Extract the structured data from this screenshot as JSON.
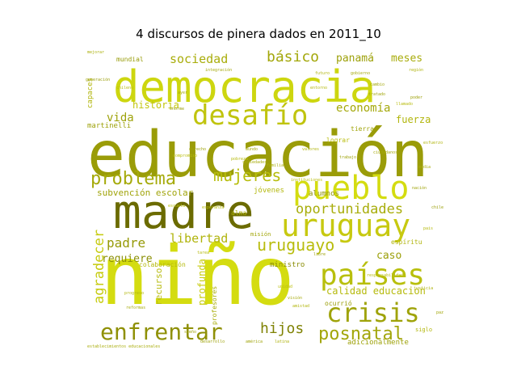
{
  "title": "4 discursos de pinera dados en 2011_10",
  "chart_data": {
    "type": "wordcloud",
    "title": "4 discursos de pinera dados en 2011_10",
    "words": [
      {
        "text": "niño",
        "weight": 100,
        "color": "#d4dc10",
        "dir": "h"
      },
      {
        "text": "educación",
        "weight": 88,
        "color": "#9a9c08",
        "dir": "h"
      },
      {
        "text": "madre",
        "weight": 80,
        "color": "#6b6b00",
        "dir": "h"
      },
      {
        "text": "democracia",
        "weight": 72,
        "color": "#cdd60f",
        "dir": "h"
      },
      {
        "text": "pueblo",
        "weight": 58,
        "color": "#d4dc10",
        "dir": "h"
      },
      {
        "text": "uruguay",
        "weight": 52,
        "color": "#c7c910",
        "dir": "h"
      },
      {
        "text": "países",
        "weight": 50,
        "color": "#b8bf0d",
        "dir": "h"
      },
      {
        "text": "desafío",
        "weight": 48,
        "color": "#c0c40e",
        "dir": "h"
      },
      {
        "text": "crisis",
        "weight": 44,
        "color": "#9fa30a",
        "dir": "h"
      },
      {
        "text": "enfrentar",
        "weight": 40,
        "color": "#8f9006",
        "dir": "h"
      },
      {
        "text": "problema",
        "weight": 34,
        "color": "#a5aa0a",
        "dir": "h"
      },
      {
        "text": "mujeres",
        "weight": 28,
        "color": "#b7bd0c",
        "dir": "h"
      },
      {
        "text": "posnatal",
        "weight": 28,
        "color": "#a2a60a",
        "dir": "h"
      },
      {
        "text": "uruguayo",
        "weight": 28,
        "color": "#b8bc0d",
        "dir": "h"
      },
      {
        "text": "oportunidades",
        "weight": 24,
        "color": "#a8ad0b",
        "dir": "h"
      },
      {
        "text": "hijos",
        "weight": 24,
        "color": "#7f8204",
        "dir": "h"
      },
      {
        "text": "básico",
        "weight": 24,
        "color": "#a3a70a",
        "dir": "h"
      },
      {
        "text": "agradecer",
        "weight": 24,
        "color": "#c6cb0f",
        "dir": "v"
      },
      {
        "text": "sociedad",
        "weight": 20,
        "color": "#a9ad0b",
        "dir": "h"
      },
      {
        "text": "padre",
        "weight": 20,
        "color": "#969a08",
        "dir": "h"
      },
      {
        "text": "libertad",
        "weight": 20,
        "color": "#b0b40c",
        "dir": "h"
      },
      {
        "text": "vida",
        "weight": 20,
        "color": "#9ea20a",
        "dir": "h"
      },
      {
        "text": "economía",
        "weight": 18,
        "color": "#a4a80a",
        "dir": "h"
      },
      {
        "text": "requiere",
        "weight": 16,
        "color": "#8c9007",
        "dir": "h"
      },
      {
        "text": "panamá",
        "weight": 16,
        "color": "#9da10a",
        "dir": "h"
      },
      {
        "text": "meses",
        "weight": 16,
        "color": "#a8ac0b",
        "dir": "h"
      },
      {
        "text": "caso",
        "weight": 16,
        "color": "#9b9f09",
        "dir": "h"
      },
      {
        "text": "calidad educacion",
        "weight": 14,
        "color": "#b6ba0d",
        "dir": "h"
      },
      {
        "text": "historia",
        "weight": 14,
        "color": "#c2c60e",
        "dir": "h"
      },
      {
        "text": "fuerza",
        "weight": 14,
        "color": "#b1b50c",
        "dir": "h"
      },
      {
        "text": "subvención escolar",
        "weight": 13,
        "color": "#a0a40a",
        "dir": "h"
      },
      {
        "text": "profunda",
        "weight": 14,
        "color": "#c7cc0f",
        "dir": "v"
      },
      {
        "text": "recurso",
        "weight": 13,
        "color": "#b7bb0d",
        "dir": "v"
      },
      {
        "text": "alumnos",
        "weight": 11,
        "color": "#8e9207",
        "dir": "h"
      },
      {
        "text": "jóvenes",
        "weight": 11,
        "color": "#b3b70c",
        "dir": "h"
      },
      {
        "text": "ministro",
        "weight": 11,
        "color": "#8a8d06",
        "dir": "h"
      },
      {
        "text": "adicionalmente",
        "weight": 11,
        "color": "#9ea20a",
        "dir": "h"
      },
      {
        "text": "capaces",
        "weight": 11,
        "color": "#b1b50c",
        "dir": "v"
      },
      {
        "text": "martinelli",
        "weight": 10,
        "color": "#9da10a",
        "dir": "h"
      },
      {
        "text": "mundial",
        "weight": 10,
        "color": "#989c09",
        "dir": "h"
      },
      {
        "text": "colaboración",
        "weight": 10,
        "color": "#b5b90d",
        "dir": "h"
      },
      {
        "text": "alma",
        "weight": 10,
        "color": "#a9ad0b",
        "dir": "h"
      },
      {
        "text": "misión",
        "weight": 9,
        "color": "#a2a60a",
        "dir": "h"
      },
      {
        "text": "espíritu",
        "weight": 9,
        "color": "#b0b40c",
        "dir": "h"
      },
      {
        "text": "tierra",
        "weight": 9,
        "color": "#a0a40a",
        "dir": "h"
      },
      {
        "text": "lograr",
        "weight": 9,
        "color": "#b9bd0d",
        "dir": "h"
      },
      {
        "text": "profesores",
        "weight": 9,
        "color": "#a9ad0b",
        "dir": "v"
      },
      {
        "text": "ocurrió",
        "weight": 9,
        "color": "#9a9e09",
        "dir": "h"
      },
      {
        "text": "siglo",
        "weight": 9,
        "color": "#b3b70c",
        "dir": "h"
      },
      {
        "text": "generación",
        "weight": 7,
        "color": "#9a9e09",
        "dir": "h"
      },
      {
        "text": "chileno",
        "weight": 7,
        "color": "#b9bd0d",
        "dir": "h"
      },
      {
        "text": "ayer",
        "weight": 7,
        "color": "#a5a90b",
        "dir": "h"
      },
      {
        "text": "futuro",
        "weight": 7,
        "color": "#b0b40c",
        "dir": "h"
      },
      {
        "text": "poder",
        "weight": 7,
        "color": "#9da10a",
        "dir": "h"
      },
      {
        "text": "cambio",
        "weight": 7,
        "color": "#a3a70a",
        "dir": "h"
      },
      {
        "text": "pobreza",
        "weight": 7,
        "color": "#b5b90d",
        "dir": "h"
      },
      {
        "text": "familia",
        "weight": 7,
        "color": "#aaae0b",
        "dir": "h"
      },
      {
        "text": "trabajo",
        "weight": 7,
        "color": "#9fa30a",
        "dir": "h"
      },
      {
        "text": "amistad",
        "weight": 7,
        "color": "#b2b60c",
        "dir": "h"
      },
      {
        "text": "visión",
        "weight": 7,
        "color": "#a6aa0b",
        "dir": "h"
      },
      {
        "text": "escuela",
        "weight": 7,
        "color": "#bcc00e",
        "dir": "h"
      },
      {
        "text": "américa",
        "weight": 7,
        "color": "#a0a40a",
        "dir": "h"
      },
      {
        "text": "latina",
        "weight": 7,
        "color": "#aeb20c",
        "dir": "h"
      },
      {
        "text": "desarrollo",
        "weight": 7,
        "color": "#9fa30a",
        "dir": "h"
      },
      {
        "text": "responsabilidad",
        "weight": 7,
        "color": "#b8bc0d",
        "dir": "h"
      },
      {
        "text": "sociedades",
        "weight": 6,
        "color": "#a7ab0b",
        "dir": "h"
      },
      {
        "text": "entorno",
        "weight": 6,
        "color": "#b4b80c",
        "dir": "h"
      },
      {
        "text": "enorme",
        "weight": 6,
        "color": "#999d09",
        "dir": "h"
      },
      {
        "text": "mejorar",
        "weight": 6,
        "color": "#acb00b",
        "dir": "h"
      },
      {
        "text": "tratado",
        "weight": 6,
        "color": "#a1a50a",
        "dir": "h"
      },
      {
        "text": "llamado",
        "weight": 6,
        "color": "#b7bb0d",
        "dir": "h"
      },
      {
        "text": "derecho",
        "weight": 6,
        "color": "#9ea20a",
        "dir": "h"
      },
      {
        "text": "esfuerzo",
        "weight": 6,
        "color": "#b0b40c",
        "dir": "h"
      },
      {
        "text": "gobierno",
        "weight": 6,
        "color": "#a4a80a",
        "dir": "h"
      },
      {
        "text": "compromiso",
        "weight": 6,
        "color": "#bbbf0e",
        "dir": "h"
      },
      {
        "text": "media",
        "weight": 6,
        "color": "#a8ac0b",
        "dir": "h"
      },
      {
        "text": "chile",
        "weight": 6,
        "color": "#9b9f09",
        "dir": "h"
      },
      {
        "text": "pais",
        "weight": 6,
        "color": "#b5b90d",
        "dir": "h"
      },
      {
        "text": "mundo",
        "weight": 6,
        "color": "#a2a60a",
        "dir": "h"
      },
      {
        "text": "valores",
        "weight": 6,
        "color": "#b1b50c",
        "dir": "h"
      },
      {
        "text": "ciudadanos",
        "weight": 6,
        "color": "#a6aa0b",
        "dir": "h"
      },
      {
        "text": "esperanza",
        "weight": 6,
        "color": "#b9bd0d",
        "dir": "h"
      },
      {
        "text": "libre",
        "weight": 6,
        "color": "#9da10a",
        "dir": "h"
      },
      {
        "text": "justicia",
        "weight": 6,
        "color": "#adb10b",
        "dir": "h"
      },
      {
        "text": "paz",
        "weight": 6,
        "color": "#a3a70a",
        "dir": "h"
      },
      {
        "text": "tarea",
        "weight": 6,
        "color": "#b6ba0d",
        "dir": "h"
      },
      {
        "text": "sueño",
        "weight": 6,
        "color": "#9fa30a",
        "dir": "h"
      },
      {
        "text": "progreso",
        "weight": 6,
        "color": "#b2b60c",
        "dir": "h"
      },
      {
        "text": "reformas",
        "weight": 6,
        "color": "#a7ab0b",
        "dir": "h"
      },
      {
        "text": "unidad",
        "weight": 6,
        "color": "#bcc00e",
        "dir": "h"
      },
      {
        "text": "nación",
        "weight": 6,
        "color": "#a0a40a",
        "dir": "h"
      },
      {
        "text": "región",
        "weight": 6,
        "color": "#afb30c",
        "dir": "h"
      },
      {
        "text": "integración",
        "weight": 6,
        "color": "#a5a90b",
        "dir": "h"
      },
      {
        "text": "instituciones",
        "weight": 6,
        "color": "#b8bc0d",
        "dir": "h"
      },
      {
        "text": "establecimientos educacionales",
        "weight": 5,
        "color": "#a9ad0b",
        "dir": "h"
      }
    ]
  }
}
